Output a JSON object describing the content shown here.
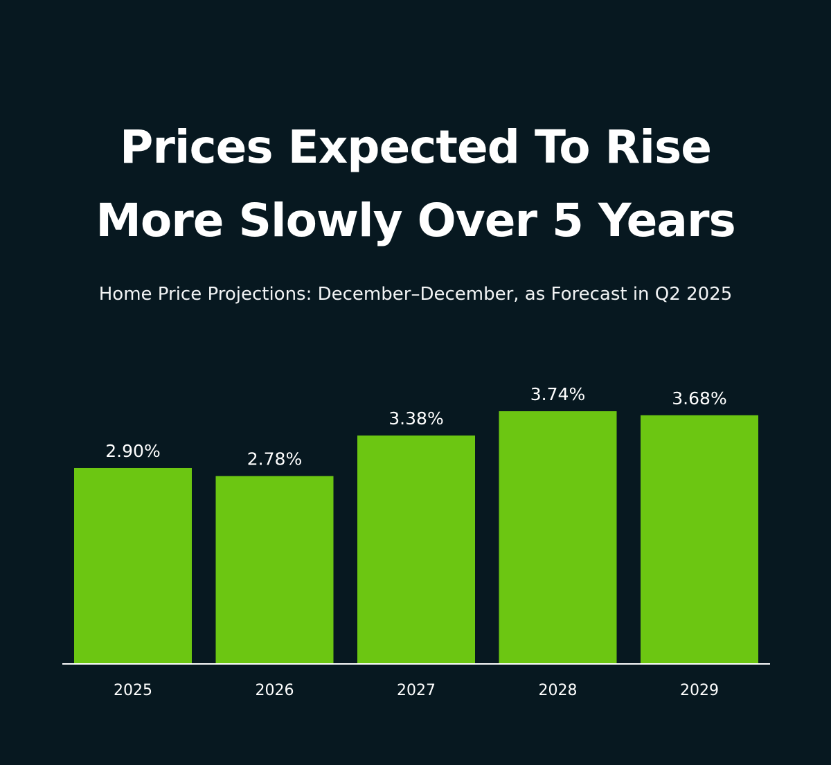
{
  "heading": {
    "line1": "Prices Expected To Rise",
    "line2": "More Slowly Over 5 Years"
  },
  "subtitle": "Home Price Projections: December–December, as Forecast in Q2 2025",
  "colors": {
    "background": "#071820",
    "bar": "#6cc612",
    "text": "#ffffff",
    "axis": "#ffffff"
  },
  "chart_data": {
    "type": "bar",
    "title": "Prices Expected To Rise More Slowly Over 5 Years",
    "subtitle": "Home Price Projections: December–December, as Forecast in Q2 2025",
    "categories": [
      "2025",
      "2026",
      "2027",
      "2028",
      "2029"
    ],
    "values": [
      2.9,
      2.78,
      3.38,
      3.74,
      3.68
    ],
    "value_labels": [
      "2.90%",
      "2.78%",
      "3.38%",
      "3.74%",
      "3.68%"
    ],
    "xlabel": "",
    "ylabel": "",
    "ylim": [
      0,
      3.74
    ],
    "grid": false,
    "legend": "none"
  }
}
